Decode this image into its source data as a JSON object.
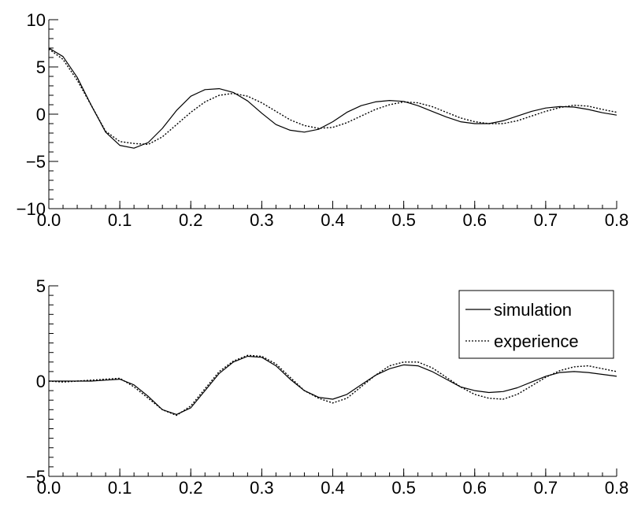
{
  "chart_data": [
    {
      "type": "line",
      "title": "",
      "xlabel": "",
      "ylabel": "",
      "xlim": [
        0.0,
        0.8
      ],
      "ylim": [
        -10,
        10
      ],
      "xticks": [
        "0.0",
        "0.1",
        "0.2",
        "0.3",
        "0.4",
        "0.5",
        "0.6",
        "0.7",
        "0.8"
      ],
      "yticks": [
        "−10",
        "−5",
        "0",
        "5",
        "10"
      ],
      "grid": false,
      "legend": null,
      "series": [
        {
          "name": "simulation",
          "style": "solid",
          "x": [
            0.0,
            0.02,
            0.04,
            0.06,
            0.08,
            0.1,
            0.12,
            0.14,
            0.16,
            0.18,
            0.2,
            0.22,
            0.24,
            0.26,
            0.28,
            0.3,
            0.32,
            0.34,
            0.36,
            0.38,
            0.4,
            0.42,
            0.44,
            0.46,
            0.48,
            0.5,
            0.52,
            0.54,
            0.56,
            0.58,
            0.6,
            0.62,
            0.64,
            0.66,
            0.68,
            0.7,
            0.72,
            0.74,
            0.76,
            0.78,
            0.8
          ],
          "values": [
            7.0,
            6.1,
            3.9,
            0.9,
            -1.9,
            -3.3,
            -3.6,
            -3.0,
            -1.5,
            0.4,
            1.9,
            2.6,
            2.7,
            2.3,
            1.4,
            0.1,
            -1.1,
            -1.7,
            -1.9,
            -1.6,
            -0.8,
            0.2,
            0.9,
            1.3,
            1.45,
            1.35,
            0.9,
            0.3,
            -0.3,
            -0.8,
            -1.0,
            -1.0,
            -0.7,
            -0.2,
            0.3,
            0.65,
            0.8,
            0.75,
            0.5,
            0.15,
            -0.1
          ]
        },
        {
          "name": "experience",
          "style": "dotted",
          "x": [
            0.0,
            0.02,
            0.04,
            0.06,
            0.08,
            0.1,
            0.12,
            0.14,
            0.16,
            0.18,
            0.2,
            0.22,
            0.24,
            0.26,
            0.28,
            0.3,
            0.32,
            0.34,
            0.36,
            0.38,
            0.4,
            0.42,
            0.44,
            0.46,
            0.48,
            0.5,
            0.52,
            0.54,
            0.56,
            0.58,
            0.6,
            0.62,
            0.64,
            0.66,
            0.68,
            0.7,
            0.72,
            0.74,
            0.76,
            0.78,
            0.8
          ],
          "values": [
            6.9,
            5.8,
            3.6,
            0.9,
            -1.8,
            -2.9,
            -3.1,
            -3.2,
            -2.4,
            -1.1,
            0.2,
            1.3,
            2.0,
            2.2,
            1.9,
            1.2,
            0.3,
            -0.6,
            -1.2,
            -1.5,
            -1.4,
            -0.9,
            -0.2,
            0.5,
            1.0,
            1.3,
            1.2,
            0.8,
            0.2,
            -0.4,
            -0.8,
            -1.0,
            -1.0,
            -0.7,
            -0.2,
            0.3,
            0.7,
            0.95,
            0.85,
            0.5,
            0.2
          ]
        }
      ]
    },
    {
      "type": "line",
      "title": "",
      "xlabel": "",
      "ylabel": "",
      "xlim": [
        0.0,
        0.8
      ],
      "ylim": [
        -5,
        5
      ],
      "xticks": [
        "0.0",
        "0.1",
        "0.2",
        "0.3",
        "0.4",
        "0.5",
        "0.6",
        "0.7",
        "0.8"
      ],
      "yticks": [
        "−5",
        "0",
        "5"
      ],
      "grid": false,
      "legend": "top-right",
      "series": [
        {
          "name": "simulation",
          "style": "solid",
          "x": [
            0.0,
            0.02,
            0.04,
            0.06,
            0.08,
            0.1,
            0.12,
            0.14,
            0.16,
            0.18,
            0.2,
            0.22,
            0.24,
            0.26,
            0.28,
            0.3,
            0.32,
            0.34,
            0.36,
            0.38,
            0.4,
            0.42,
            0.44,
            0.46,
            0.48,
            0.5,
            0.52,
            0.54,
            0.56,
            0.58,
            0.6,
            0.62,
            0.64,
            0.66,
            0.68,
            0.7,
            0.72,
            0.74,
            0.76,
            0.78,
            0.8
          ],
          "values": [
            0.0,
            0.0,
            0.0,
            0.0,
            0.05,
            0.1,
            -0.2,
            -0.8,
            -1.5,
            -1.75,
            -1.4,
            -0.5,
            0.4,
            1.0,
            1.3,
            1.25,
            0.8,
            0.1,
            -0.5,
            -0.85,
            -0.95,
            -0.7,
            -0.2,
            0.3,
            0.65,
            0.85,
            0.8,
            0.5,
            0.1,
            -0.3,
            -0.5,
            -0.6,
            -0.55,
            -0.35,
            -0.05,
            0.25,
            0.45,
            0.5,
            0.45,
            0.35,
            0.25
          ]
        },
        {
          "name": "experience",
          "style": "dotted",
          "x": [
            0.0,
            0.02,
            0.04,
            0.06,
            0.08,
            0.1,
            0.12,
            0.14,
            0.16,
            0.18,
            0.2,
            0.22,
            0.24,
            0.26,
            0.28,
            0.3,
            0.32,
            0.34,
            0.36,
            0.38,
            0.4,
            0.42,
            0.44,
            0.46,
            0.48,
            0.5,
            0.52,
            0.54,
            0.56,
            0.58,
            0.6,
            0.62,
            0.64,
            0.66,
            0.68,
            0.7,
            0.72,
            0.74,
            0.76,
            0.78,
            0.8
          ],
          "values": [
            0.0,
            -0.05,
            0.0,
            0.05,
            0.1,
            0.15,
            -0.3,
            -0.9,
            -1.5,
            -1.8,
            -1.3,
            -0.4,
            0.5,
            1.05,
            1.35,
            1.3,
            0.9,
            0.2,
            -0.5,
            -0.9,
            -1.15,
            -0.9,
            -0.3,
            0.3,
            0.8,
            1.0,
            1.0,
            0.7,
            0.2,
            -0.3,
            -0.7,
            -0.9,
            -0.95,
            -0.7,
            -0.25,
            0.2,
            0.55,
            0.75,
            0.8,
            0.65,
            0.5
          ]
        }
      ]
    }
  ]
}
